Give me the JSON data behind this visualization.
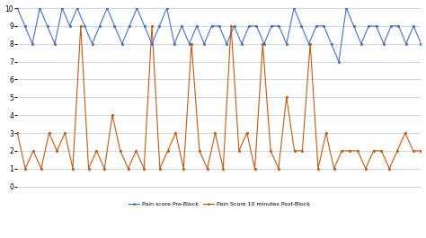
{
  "pre_block": [
    10,
    9,
    8,
    10,
    9,
    8,
    10,
    9,
    10,
    9,
    8,
    9,
    10,
    9,
    8,
    9,
    10,
    9,
    8,
    9,
    10,
    8,
    9,
    8,
    9,
    8,
    9,
    9,
    8,
    9,
    8,
    9,
    9,
    8,
    9,
    9,
    8,
    10,
    9,
    8,
    9,
    9,
    8,
    7,
    10,
    9,
    8,
    9,
    9,
    8,
    9,
    9,
    8,
    9,
    8
  ],
  "post_block": [
    3,
    1,
    2,
    1,
    3,
    2,
    3,
    1,
    9,
    1,
    2,
    1,
    4,
    2,
    1,
    2,
    1,
    9,
    1,
    2,
    3,
    1,
    8,
    2,
    1,
    3,
    1,
    9,
    2,
    3,
    1,
    8,
    2,
    1,
    5,
    2,
    2,
    8,
    1,
    3,
    1,
    2,
    2,
    2,
    1,
    2,
    2,
    1,
    2,
    3,
    2,
    2
  ],
  "pre_color": "#4472c4",
  "post_color": "#c55a11",
  "pre_label": "Pain score Pre-Block",
  "post_label": "Pain Score 10 minutes Post-Block",
  "ylim": [
    0,
    10
  ],
  "yticks": [
    0,
    1,
    2,
    3,
    4,
    5,
    6,
    7,
    8,
    9,
    10
  ],
  "bg_color": "#ffffff",
  "grid_color": "#bfc7d6"
}
